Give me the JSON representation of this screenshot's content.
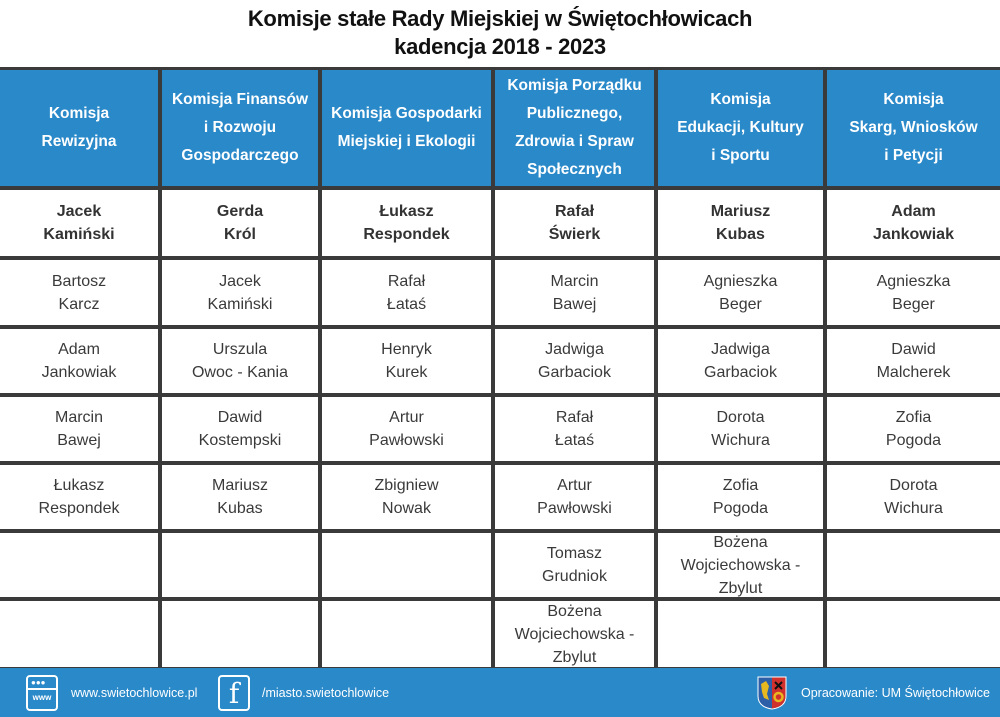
{
  "header": {
    "title_line1": "Komisje stałe Rady Miejskiej w Świętochłowicach",
    "title_line2": "kadencja 2018 - 2023"
  },
  "table": {
    "columns": [
      {
        "title": "Komisja\nRewizyjna",
        "chair": "Jacek\nKamiński",
        "members": [
          "Bartosz\nKarcz",
          "Adam\nJankowiak",
          "Marcin\nBawej",
          "Łukasz\nRespondek",
          "",
          ""
        ]
      },
      {
        "title": "Komisja Finansów\ni Rozwoju\nGospodarczego",
        "chair": "Gerda\nKról",
        "members": [
          "Jacek\nKamiński",
          "Urszula\nOwoc - Kania",
          "Dawid\nKostempski",
          "Mariusz\nKubas",
          "",
          ""
        ]
      },
      {
        "title": "Komisja Gospodarki\nMiejskiej i Ekologii",
        "chair": "Łukasz\nRespondek",
        "members": [
          "Rafał\nŁataś",
          "Henryk\nKurek",
          "Artur\nPawłowski",
          "Zbigniew\nNowak",
          "",
          ""
        ]
      },
      {
        "title": "Komisja Porządku\nPublicznego,\nZdrowia i Spraw\nSpołecznych",
        "chair": "Rafał\nŚwierk",
        "members": [
          "Marcin\nBawej",
          "Jadwiga\nGarbaciok",
          "Rafał\nŁataś",
          "Artur\nPawłowski",
          "Tomasz\nGrudniok",
          "Bożena\nWojciechowska -\nZbylut"
        ]
      },
      {
        "title": "Komisja\nEdukacji, Kultury\ni Sportu",
        "chair": "Mariusz\nKubas",
        "members": [
          "Agnieszka\nBeger",
          "Jadwiga\nGarbaciok",
          "Dorota\nWichura",
          "Zofia\nPogoda",
          "Bożena\nWojciechowska -\nZbylut",
          ""
        ]
      },
      {
        "title": "Komisja\nSkarg, Wniosków\ni Petycji",
        "chair": "Adam\nJankowiak",
        "members": [
          "Agnieszka\nBeger",
          "Dawid\nMalcherek",
          "Zofia\nPogoda",
          "Dorota\nWichura",
          "",
          ""
        ]
      }
    ]
  },
  "footer": {
    "website": "www.swietochlowice.pl",
    "website_icon_text": "www",
    "facebook": "/miasto.swietochlowice",
    "facebook_icon_glyph": "f",
    "credit": "Opracowanie: UM Świętochłowice"
  },
  "colors": {
    "header_blue": "#2a89c9",
    "grid_line": "#3a3a3a",
    "crest_blue": "#2d5fa8",
    "crest_red": "#d0312d",
    "crest_gold": "#e8b820"
  }
}
